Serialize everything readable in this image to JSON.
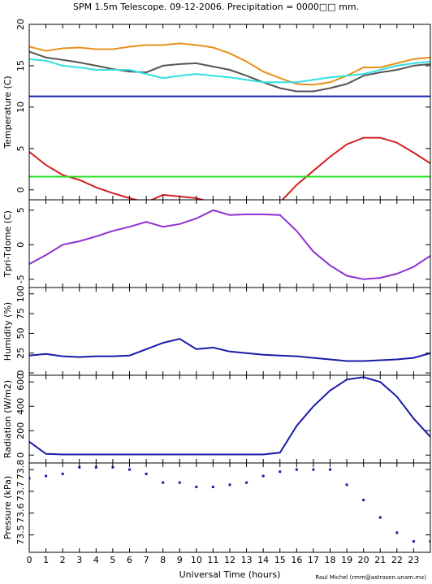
{
  "title": "SPM 1.5m Telescope. 09-12-2006. Precipitation = 0000□□ mm.",
  "credit": "Raul Michel (rmm@astrosen.unam.mx)",
  "chart_data": [
    {
      "type": "line",
      "ylabel": "Temperature (C)",
      "ylim": [
        -1.2,
        20
      ],
      "yticks": [
        0,
        5,
        10,
        15,
        20
      ],
      "x": [
        0,
        1,
        2,
        3,
        4,
        5,
        6,
        7,
        8,
        9,
        10,
        11,
        12,
        13,
        14,
        15,
        16,
        17,
        18,
        19,
        20,
        21,
        22,
        23,
        24
      ],
      "series": [
        {
          "name": "orange",
          "color": "#e8901c",
          "values": [
            17.3,
            16.8,
            17.1,
            17.2,
            17.0,
            17.0,
            17.3,
            17.5,
            17.5,
            17.7,
            17.5,
            17.2,
            16.5,
            15.5,
            14.3,
            13.5,
            12.8,
            12.7,
            13.0,
            13.8,
            14.8,
            14.8,
            15.3,
            15.8,
            16.0
          ]
        },
        {
          "name": "gray",
          "color": "#555555",
          "values": [
            16.7,
            16.0,
            15.7,
            15.4,
            15.0,
            14.6,
            14.3,
            14.2,
            15.0,
            15.2,
            15.3,
            14.9,
            14.5,
            13.8,
            13.0,
            12.3,
            11.9,
            11.9,
            12.3,
            12.8,
            13.8,
            14.2,
            14.5,
            15.0,
            15.2
          ]
        },
        {
          "name": "cyan",
          "color": "#30e0e0",
          "values": [
            15.8,
            15.6,
            15.0,
            14.8,
            14.5,
            14.5,
            14.5,
            14.0,
            13.5,
            13.8,
            14.0,
            13.8,
            13.6,
            13.3,
            13.0,
            13.0,
            13.0,
            13.3,
            13.6,
            13.8,
            14.0,
            14.5,
            15.0,
            15.3,
            15.5
          ]
        },
        {
          "name": "blue",
          "color": "#1020b0",
          "values": [
            11.3,
            11.3,
            11.3,
            11.3,
            11.3,
            11.3,
            11.3,
            11.3,
            11.3,
            11.3,
            11.3,
            11.3,
            11.3,
            11.3,
            11.3,
            11.3,
            11.3,
            11.3,
            11.3,
            11.3,
            11.3,
            11.3,
            11.3,
            11.3,
            11.3
          ]
        },
        {
          "name": "red",
          "color": "#d42020",
          "values": [
            4.6,
            3.0,
            1.8,
            1.2,
            0.3,
            -0.4,
            -1.0,
            -1.5,
            -0.6,
            -0.8,
            -1.0,
            -1.5,
            null,
            null,
            null,
            -1.5,
            0.6,
            2.3,
            4.0,
            5.5,
            6.3,
            6.3,
            5.7,
            4.5,
            3.2
          ]
        },
        {
          "name": "green",
          "color": "#20e020",
          "values": [
            1.6,
            1.6,
            1.6,
            1.6,
            1.6,
            1.6,
            1.6,
            1.6,
            1.6,
            1.6,
            1.6,
            1.6,
            1.6,
            1.6,
            1.6,
            1.6,
            1.6,
            1.6,
            1.6,
            1.6,
            1.6,
            1.6,
            1.6,
            1.6,
            1.6
          ]
        }
      ]
    },
    {
      "type": "line",
      "ylabel": "Tpri-Tdome (C)",
      "ylim": [
        -6.2,
        6.5
      ],
      "yticks": [
        -5,
        0,
        5
      ],
      "x": [
        0,
        1,
        2,
        3,
        4,
        5,
        6,
        7,
        8,
        9,
        10,
        11,
        12,
        13,
        14,
        15,
        16,
        17,
        18,
        19,
        20,
        21,
        22,
        23,
        24
      ],
      "series": [
        {
          "name": "purple",
          "color": "#9030d0",
          "values": [
            -2.8,
            -1.5,
            0,
            0.5,
            1.2,
            2.0,
            2.6,
            3.3,
            2.6,
            3.0,
            3.8,
            5.0,
            4.3,
            4.4,
            4.4,
            4.3,
            2.0,
            -1.0,
            -3.0,
            -4.5,
            -5.0,
            -4.8,
            -4.2,
            -3.2,
            -1.6
          ]
        }
      ]
    },
    {
      "type": "line",
      "ylabel": "Humidity (%)",
      "ylim": [
        -3,
        108
      ],
      "yticks": [
        0,
        25,
        50,
        75,
        100
      ],
      "x": [
        0,
        1,
        2,
        3,
        4,
        5,
        6,
        7,
        8,
        9,
        10,
        11,
        12,
        13,
        14,
        15,
        16,
        17,
        18,
        19,
        20,
        21,
        22,
        23,
        24
      ],
      "series": [
        {
          "name": "humidity",
          "color": "#1a1aa8",
          "values": [
            22,
            24,
            21,
            20,
            21,
            21,
            22,
            30,
            38,
            43,
            30,
            32,
            27,
            25,
            23,
            22,
            21,
            19,
            17,
            15,
            15,
            16,
            17,
            19,
            25
          ]
        }
      ]
    },
    {
      "type": "line",
      "ylabel": "Radiation (W/m2)",
      "ylim": [
        -65,
        655
      ],
      "yticks": [
        0,
        200,
        400,
        600
      ],
      "x": [
        0,
        1,
        2,
        3,
        4,
        5,
        6,
        7,
        8,
        9,
        10,
        11,
        12,
        13,
        14,
        15,
        16,
        17,
        18,
        19,
        20,
        21,
        22,
        23,
        24
      ],
      "series": [
        {
          "name": "radiation",
          "color": "#1a1aa8",
          "values": [
            110,
            10,
            5,
            5,
            5,
            5,
            5,
            5,
            5,
            5,
            5,
            5,
            5,
            5,
            5,
            20,
            240,
            400,
            530,
            620,
            640,
            600,
            480,
            300,
            150
          ]
        }
      ]
    },
    {
      "type": "scatter",
      "ylabel": "Pressure (kPa)",
      "ylim": [
        73.42,
        73.83
      ],
      "yticks": [
        73.5,
        73.6,
        73.7,
        73.8
      ],
      "x": [
        0,
        1,
        2,
        3,
        4,
        5,
        6,
        7,
        8,
        9,
        10,
        11,
        12,
        13,
        14,
        15,
        16,
        17,
        18,
        19,
        20,
        21,
        22,
        23,
        24
      ],
      "series": [
        {
          "name": "pressure",
          "color": "#1a1aa8",
          "values": [
            73.76,
            73.77,
            73.78,
            73.81,
            73.81,
            73.81,
            73.8,
            73.78,
            73.74,
            73.74,
            73.72,
            73.72,
            73.73,
            73.74,
            73.77,
            73.79,
            73.8,
            73.8,
            73.8,
            73.73,
            73.66,
            73.58,
            73.51,
            73.47,
            73.47
          ]
        }
      ],
      "xlabel": "Universal Time (hours)",
      "xlim": [
        0,
        24
      ],
      "xticks": [
        0,
        1,
        2,
        3,
        4,
        5,
        6,
        7,
        8,
        9,
        10,
        11,
        12,
        13,
        14,
        15,
        16,
        17,
        18,
        19,
        20,
        21,
        22,
        23
      ]
    }
  ]
}
